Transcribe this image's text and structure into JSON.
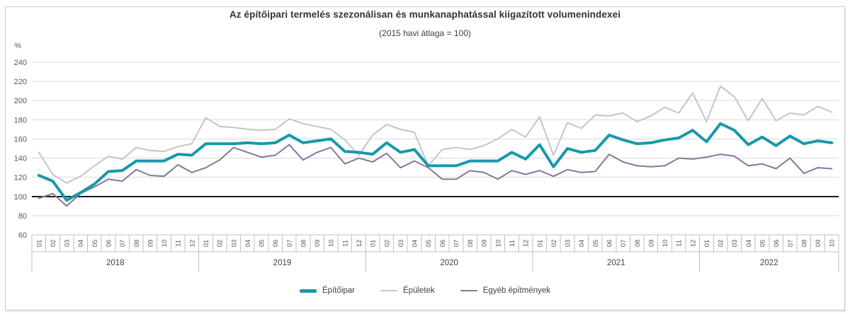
{
  "title": "Az építőipari termelés szezonálisan és munkanaphatással kiigazított volumenindexei",
  "subtitle": "(2015 havi átlaga = 100)",
  "y_axis": {
    "unit": "%",
    "ticks": [
      60,
      80,
      100,
      120,
      140,
      160,
      180,
      200,
      220,
      240
    ],
    "baseline": 100
  },
  "x_axis": {
    "years": [
      {
        "label": "2018",
        "months": [
          "01",
          "02",
          "03",
          "04",
          "05",
          "06",
          "07",
          "08",
          "09",
          "10",
          "11",
          "12"
        ]
      },
      {
        "label": "2019",
        "months": [
          "01",
          "02",
          "03",
          "04",
          "05",
          "06",
          "07",
          "08",
          "09",
          "10",
          "11",
          "12"
        ]
      },
      {
        "label": "2020",
        "months": [
          "01",
          "02",
          "03",
          "04",
          "05",
          "06",
          "07",
          "08",
          "09",
          "10",
          "11",
          "12"
        ]
      },
      {
        "label": "2021",
        "months": [
          "01",
          "02",
          "03",
          "04",
          "05",
          "06",
          "07",
          "08",
          "09",
          "10",
          "11",
          "12"
        ]
      },
      {
        "label": "2022",
        "months": [
          "01",
          "02",
          "03",
          "04",
          "05",
          "06",
          "07",
          "08",
          "09",
          "10"
        ]
      }
    ]
  },
  "colors": {
    "grid": "#d9d9d9",
    "baseline": "#1a1a1a",
    "cell_border": "#bfbfbf",
    "tick_text": "#595959",
    "year_text": "#404040",
    "frame_border": "#c9c9c9"
  },
  "chart_data": {
    "type": "line",
    "title": "Az építőipari termelés szezonálisan és munkanaphatással kiigazított volumenindexei",
    "subtitle": "(2015 havi átlaga = 100)",
    "ylabel": "%",
    "ylim": [
      60,
      240
    ],
    "ytick_step": 20,
    "baseline": 100,
    "grid": "horizontal",
    "legend_position": "bottom",
    "categories": [
      "2018-01",
      "2018-02",
      "2018-03",
      "2018-04",
      "2018-05",
      "2018-06",
      "2018-07",
      "2018-08",
      "2018-09",
      "2018-10",
      "2018-11",
      "2018-12",
      "2019-01",
      "2019-02",
      "2019-03",
      "2019-04",
      "2019-05",
      "2019-06",
      "2019-07",
      "2019-08",
      "2019-09",
      "2019-10",
      "2019-11",
      "2019-12",
      "2020-01",
      "2020-02",
      "2020-03",
      "2020-04",
      "2020-05",
      "2020-06",
      "2020-07",
      "2020-08",
      "2020-09",
      "2020-10",
      "2020-11",
      "2020-12",
      "2021-01",
      "2021-02",
      "2021-03",
      "2021-04",
      "2021-05",
      "2021-06",
      "2021-07",
      "2021-08",
      "2021-09",
      "2021-10",
      "2021-11",
      "2021-12",
      "2022-01",
      "2022-02",
      "2022-03",
      "2022-04",
      "2022-05",
      "2022-06",
      "2022-07",
      "2022-08",
      "2022-09",
      "2022-10"
    ],
    "series": [
      {
        "name": "Építőipar",
        "color": "#1799ab",
        "line_width": 4,
        "values": [
          122,
          116,
          96,
          104,
          113,
          126,
          127,
          137,
          137,
          137,
          144,
          143,
          155,
          155,
          155,
          156,
          155,
          156,
          164,
          156,
          158,
          160,
          147,
          146,
          144,
          156,
          146,
          149,
          132,
          132,
          132,
          137,
          137,
          137,
          146,
          139,
          154,
          131,
          150,
          146,
          148,
          164,
          159,
          155,
          156,
          159,
          161,
          169,
          157,
          176,
          169,
          154,
          162,
          153,
          163,
          155,
          158,
          156
        ]
      },
      {
        "name": "Épületek",
        "color": "#c5c5c5",
        "line_width": 2,
        "values": [
          146,
          123,
          114,
          121,
          132,
          142,
          139,
          151,
          148,
          147,
          152,
          155,
          182,
          173,
          172,
          170,
          169,
          170,
          181,
          176,
          173,
          170,
          159,
          143,
          164,
          175,
          170,
          167,
          132,
          149,
          151,
          149,
          153,
          160,
          170,
          162,
          183,
          143,
          177,
          171,
          185,
          184,
          187,
          178,
          184,
          193,
          187,
          208,
          178,
          215,
          204,
          179,
          202,
          179,
          187,
          185,
          194,
          188
        ]
      },
      {
        "name": "Egyéb építmények",
        "color": "#84789b",
        "line_width": 2,
        "values": [
          98,
          103,
          90,
          103,
          110,
          118,
          116,
          128,
          122,
          121,
          133,
          125,
          130,
          138,
          151,
          146,
          141,
          143,
          154,
          138,
          146,
          151,
          134,
          140,
          136,
          145,
          130,
          137,
          130,
          118,
          118,
          127,
          125,
          118,
          127,
          123,
          127,
          121,
          128,
          125,
          126,
          144,
          136,
          132,
          131,
          132,
          140,
          139,
          141,
          144,
          142,
          132,
          134,
          129,
          140,
          124,
          130,
          129
        ]
      }
    ]
  }
}
